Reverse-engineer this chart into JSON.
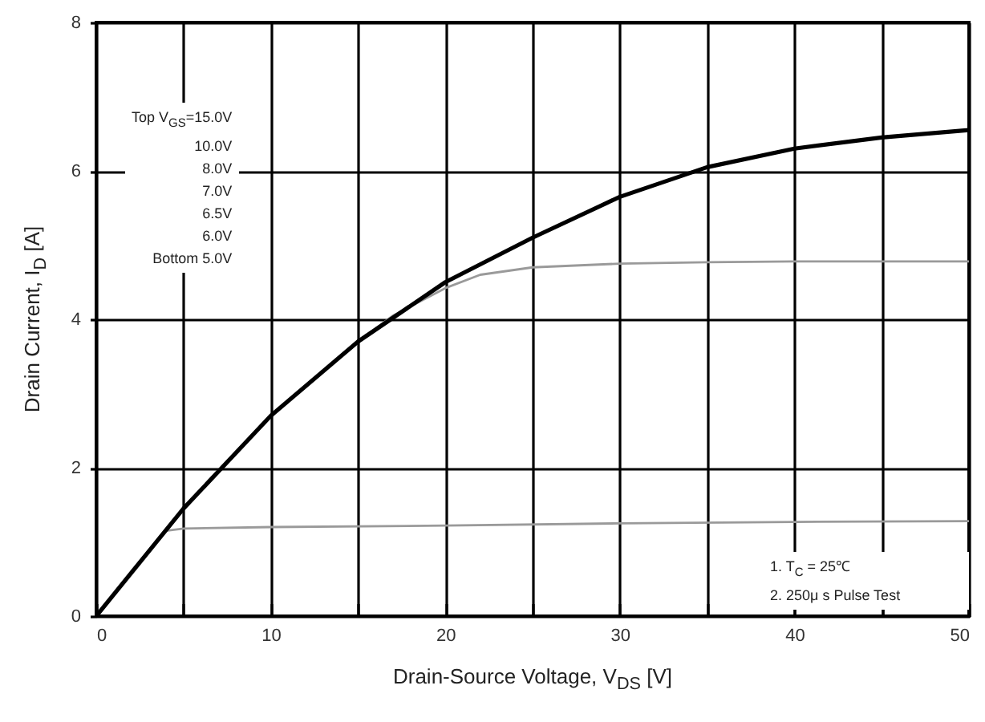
{
  "chart_data": {
    "type": "line",
    "xlabel": "Drain-Source Voltage, V$_{DS}$ [V]",
    "ylabel": "Drain Current, I$_{D}$ [A]",
    "xlim": [
      0,
      50
    ],
    "ylim": [
      0,
      8
    ],
    "xticks": [
      0,
      {
        "value": 5,
        "label": null
      },
      10,
      {
        "value": 15,
        "label": null
      },
      20,
      {
        "value": 25,
        "label": null
      },
      30,
      {
        "value": 35,
        "label": null
      },
      40,
      {
        "value": 45,
        "label": null
      },
      50
    ],
    "yticks": [
      0,
      2,
      4,
      6,
      8
    ],
    "grid": true,
    "marker": "none",
    "line_style": "solid",
    "annotations": [
      "Top  V$_{GS}$=15.0V",
      "10.0V",
      "8.0V",
      "7.0V",
      "6.5V",
      "6.0V",
      "Bottom  5.0V",
      "1. T$_{C}$ = 25℃",
      "2. 250μ s Pulse Test"
    ],
    "series": [
      {
        "color": "#9a9a9a",
        "x": [
          0,
          2,
          4,
          5,
          10,
          20,
          30,
          40,
          50
        ],
        "values": [
          0,
          0.6,
          1.15,
          1.18,
          1.2,
          1.22,
          1.25,
          1.27,
          1.28
        ]
      },
      {
        "color": "#9a9a9a",
        "x": [
          0,
          5,
          10,
          15,
          17,
          20,
          22,
          25,
          30,
          35,
          40,
          50
        ],
        "values": [
          0,
          1.45,
          2.7,
          3.7,
          4.05,
          4.42,
          4.6,
          4.7,
          4.75,
          4.77,
          4.78,
          4.78
        ]
      },
      {
        "color": "#000000",
        "x": [
          0,
          5,
          10,
          15,
          20,
          25,
          30,
          35,
          40,
          45,
          50
        ],
        "values": [
          0,
          1.45,
          2.7,
          3.7,
          4.5,
          5.1,
          5.65,
          6.05,
          6.3,
          6.45,
          6.55
        ]
      }
    ]
  }
}
